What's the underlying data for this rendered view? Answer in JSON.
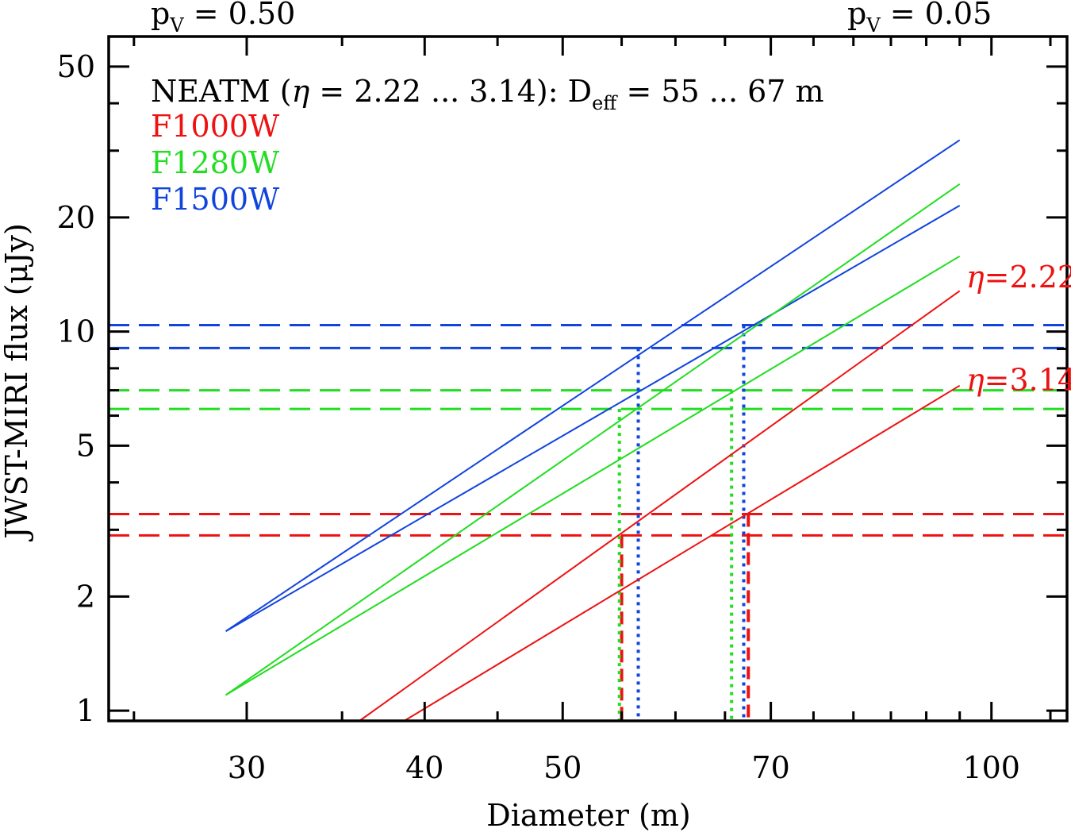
{
  "chart_data": {
    "type": "line",
    "xlabel": "Diameter (m)",
    "ylabel": "JWST-MIRI flux (μJy)",
    "xscale": "log",
    "yscale": "log",
    "xlim": [
      24,
      113
    ],
    "ylim": [
      0.94,
      60
    ],
    "xticks": [
      30,
      40,
      50,
      70,
      100
    ],
    "yticks": [
      1,
      2,
      5,
      10,
      20,
      50
    ],
    "top_labels": [
      {
        "text": "p",
        "sub": "V",
        "rest": " = 0.50"
      },
      {
        "text": "p",
        "sub": "V",
        "rest": " = 0.05"
      }
    ],
    "legend": {
      "placement": "top-left",
      "header": {
        "pre": "NEATM (",
        "eta": "η",
        "mid": " = 2.22 ... 3.14):   D",
        "sub": "eff",
        "post": " = 55 ... 67 m",
        "color": "#000000"
      },
      "entries": [
        {
          "label": "F1000W",
          "color": "#ee1111"
        },
        {
          "label": "F1280W",
          "color": "#22dd22"
        },
        {
          "label": "F1500W",
          "color": "#1144dd"
        }
      ]
    },
    "annotations": [
      {
        "eta": "η",
        "text": "=2.22",
        "color": "#ee1111",
        "x": 96.0,
        "y": 14.0
      },
      {
        "eta": "η",
        "text": "=3.14",
        "color": "#ee1111",
        "x": 96.0,
        "y": 7.5
      }
    ],
    "series": [
      {
        "filter": "F1500W",
        "color": "#1144dd",
        "x": [
          29,
          95
        ],
        "y": [
          1.62,
          32.0
        ]
      },
      {
        "filter": "F1500W",
        "color": "#1144dd",
        "x": [
          29,
          95
        ],
        "y": [
          1.62,
          21.5
        ]
      },
      {
        "filter": "F1280W",
        "color": "#22dd22",
        "x": [
          29,
          95
        ],
        "y": [
          1.1,
          24.5
        ]
      },
      {
        "filter": "F1280W",
        "color": "#22dd22",
        "x": [
          29,
          95
        ],
        "y": [
          1.1,
          15.8
        ]
      },
      {
        "filter": "F1000W",
        "color": "#ee1111",
        "x": [
          36.0,
          95
        ],
        "y": [
          0.94,
          12.8
        ]
      },
      {
        "filter": "F1000W",
        "color": "#ee1111",
        "x": [
          38.7,
          95
        ],
        "y": [
          0.94,
          7.2
        ]
      }
    ],
    "measured_flux": [
      {
        "filter": "F1500W",
        "color": "#1144dd",
        "values": [
          10.4,
          9.05
        ]
      },
      {
        "filter": "F1280W",
        "color": "#22dd22",
        "values": [
          7.0,
          6.25
        ]
      },
      {
        "filter": "F1000W",
        "color": "#ee1111",
        "values": [
          3.3,
          2.9
        ]
      }
    ],
    "diameter_markers": [
      {
        "filter": "F1000W",
        "color": "#ee1111",
        "style": "dashed",
        "x": 55.0,
        "y": 2.9
      },
      {
        "filter": "F1000W",
        "color": "#ee1111",
        "style": "dashed",
        "x": 67.5,
        "y": 3.3
      },
      {
        "filter": "F1280W",
        "color": "#22dd22",
        "style": "dotted",
        "x": 54.8,
        "y": 6.25
      },
      {
        "filter": "F1280W",
        "color": "#22dd22",
        "style": "dotted",
        "x": 65.7,
        "y": 7.0
      },
      {
        "filter": "F1500W",
        "color": "#1144dd",
        "style": "dotted",
        "x": 56.5,
        "y": 9.05
      },
      {
        "filter": "F1500W",
        "color": "#1144dd",
        "style": "dotted",
        "x": 67.0,
        "y": 10.4
      }
    ]
  }
}
